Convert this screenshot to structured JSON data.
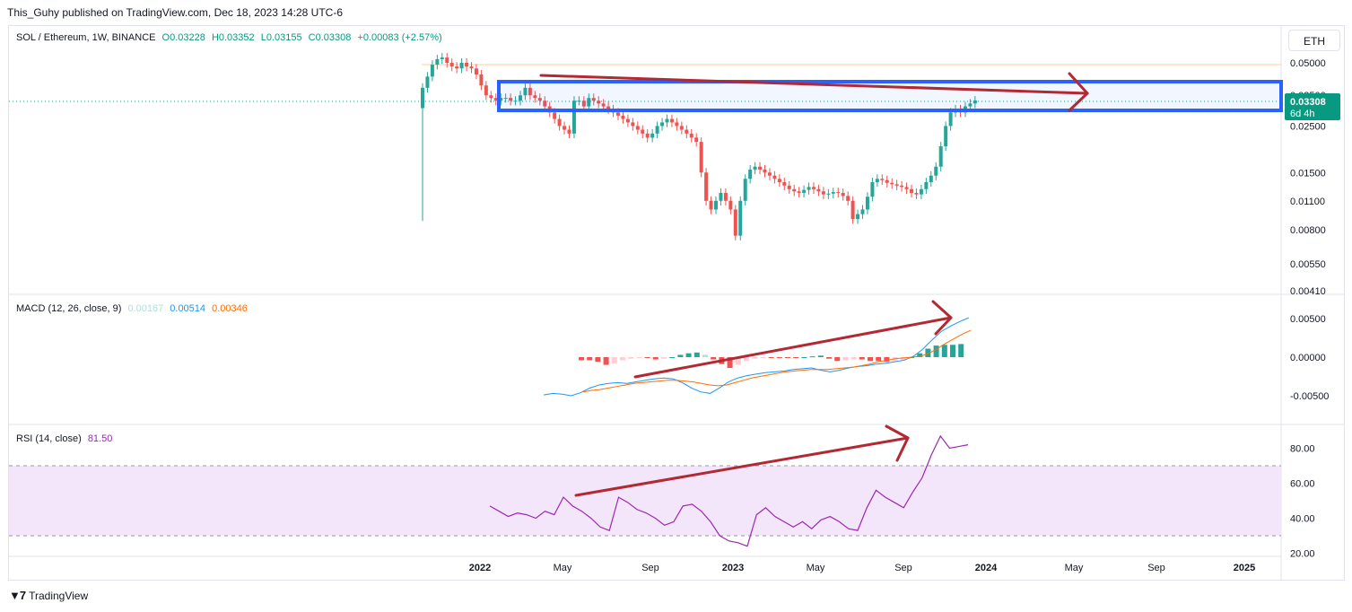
{
  "header": {
    "published": "This_Guhy published on TradingView.com, Dec 18, 2023 14:28 UTC-6"
  },
  "footer": {
    "brand": "TradingView"
  },
  "currency_button": "ETH",
  "price_legend": {
    "symbol": "SOL / Ethereum, 1W, BINANCE",
    "o": "O0.03228",
    "h": "H0.03352",
    "l": "L0.03155",
    "c": "C0.03308",
    "change": "+0.00083 (+2.57%)"
  },
  "price_badge": {
    "price": "0.03308",
    "countdown": "6d 4h"
  },
  "macd_legend": {
    "name": "MACD (12, 26, close, 9)",
    "hist": "0.00167",
    "macd": "0.00514",
    "signal": "0.00346"
  },
  "rsi_legend": {
    "name": "RSI (14, close)",
    "value": "81.50"
  },
  "colors": {
    "up": "#26a69a",
    "down": "#ef5350",
    "box": "#2962ff",
    "arrow": "#b22833",
    "macd": "#2196f3",
    "signal": "#ff6d00",
    "rsi": "#7e1f9b",
    "rsi_band": "#f4e6fa"
  },
  "chart_data": [
    {
      "type": "candlestick",
      "title": "SOL / Ethereum, 1W, BINANCE",
      "scale": "log",
      "y_ticks": [
        "0.05000",
        "0.03500",
        "0.02500",
        "0.01500",
        "0.01100",
        "0.00800",
        "0.00550",
        "0.00410"
      ],
      "x_ticks": [
        "2022",
        "May",
        "Sep",
        "2023",
        "May",
        "Sep",
        "2024",
        "May",
        "Sep",
        "2025"
      ],
      "last_price": 0.03308,
      "series_note": "weekly close (approx.)",
      "closes": [
        0.038,
        0.043,
        0.049,
        0.052,
        0.053,
        0.05,
        0.048,
        0.047,
        0.05,
        0.048,
        0.047,
        0.044,
        0.039,
        0.035,
        0.034,
        0.033,
        0.034,
        0.034,
        0.033,
        0.033,
        0.035,
        0.038,
        0.035,
        0.034,
        0.033,
        0.031,
        0.029,
        0.027,
        0.025,
        0.024,
        0.023,
        0.033,
        0.033,
        0.031,
        0.034,
        0.033,
        0.032,
        0.031,
        0.03,
        0.029,
        0.028,
        0.027,
        0.026,
        0.025,
        0.024,
        0.023,
        0.022,
        0.023,
        0.025,
        0.026,
        0.027,
        0.026,
        0.025,
        0.024,
        0.023,
        0.022,
        0.021,
        0.015,
        0.011,
        0.01,
        0.011,
        0.012,
        0.011,
        0.01,
        0.0075,
        0.011,
        0.014,
        0.0155,
        0.016,
        0.0155,
        0.015,
        0.0145,
        0.014,
        0.0135,
        0.013,
        0.0125,
        0.0122,
        0.012,
        0.0124,
        0.0128,
        0.0125,
        0.0122,
        0.0118,
        0.0119,
        0.0121,
        0.012,
        0.0116,
        0.011,
        0.009,
        0.0095,
        0.01,
        0.0115,
        0.0135,
        0.014,
        0.0138,
        0.0134,
        0.0132,
        0.013,
        0.0128,
        0.0125,
        0.012,
        0.0118,
        0.0125,
        0.0135,
        0.0145,
        0.016,
        0.02,
        0.025,
        0.029,
        0.03,
        0.029,
        0.031,
        0.032,
        0.0331
      ]
    },
    {
      "type": "line",
      "title": "MACD (12, 26, close, 9)",
      "y_ticks": [
        "0.00500",
        "0.00000",
        "-0.00500"
      ],
      "series": [
        {
          "name": "MACD",
          "values": [
            -0.0049,
            -0.0047,
            -0.0048,
            -0.005,
            -0.0046,
            -0.004,
            -0.0036,
            -0.0034,
            -0.0033,
            -0.0034,
            -0.0032,
            -0.003,
            -0.0028,
            -0.0027,
            -0.0028,
            -0.0033,
            -0.004,
            -0.0045,
            -0.0047,
            -0.004,
            -0.0032,
            -0.0027,
            -0.0024,
            -0.0022,
            -0.002,
            -0.0019,
            -0.0018,
            -0.0016,
            -0.0015,
            -0.0014,
            -0.0017,
            -0.0019,
            -0.0017,
            -0.0014,
            -0.0012,
            -0.0011,
            -0.0009,
            -0.0008,
            -0.0006,
            -0.0004,
            0.0001,
            0.001,
            0.0022,
            0.0033,
            0.004,
            0.0046,
            0.0051
          ]
        },
        {
          "name": "Signal",
          "values": [
            -0.0045,
            -0.0043,
            -0.0042,
            -0.004,
            -0.0038,
            -0.0036,
            -0.0034,
            -0.0033,
            -0.0032,
            -0.0031,
            -0.003,
            -0.003,
            -0.0031,
            -0.0032,
            -0.0034,
            -0.0036,
            -0.0037,
            -0.0036,
            -0.0033,
            -0.003,
            -0.0027,
            -0.0025,
            -0.0023,
            -0.0021,
            -0.0019,
            -0.0018,
            -0.0017,
            -0.0016,
            -0.0016,
            -0.0016,
            -0.0015,
            -0.0014,
            -0.0013,
            -0.0011,
            -0.0009,
            -0.0006,
            -0.0004,
            -0.0002,
            -0.0001,
            0.0,
            0.0001,
            0.0005,
            0.0011,
            0.0018,
            0.0024,
            0.003,
            0.0035
          ]
        },
        {
          "name": "Histogram",
          "values": [
            -0.0004,
            -0.0004,
            -0.0006,
            -0.001,
            -0.0008,
            -0.0004,
            -0.0002,
            -0.0001,
            -0.0001,
            -0.0003,
            -0.0002,
            0.0,
            0.0003,
            0.0005,
            0.0006,
            0.0003,
            -0.0003,
            -0.0009,
            -0.0014,
            -0.001,
            -0.0005,
            -0.0002,
            -0.0001,
            -0.0001,
            -0.0001,
            -0.0001,
            -0.0001,
            0.0,
            0.0001,
            0.0002,
            -0.0002,
            -0.0005,
            -0.0004,
            -0.0003,
            -0.0003,
            -0.0005,
            -0.0005,
            -0.0006,
            -0.0005,
            -0.0004,
            0.0,
            0.0005,
            0.0011,
            0.0015,
            0.0016,
            0.0016,
            0.0017
          ]
        }
      ]
    },
    {
      "type": "line",
      "title": "RSI (14, close)",
      "y_ticks": [
        "80.00",
        "60.00",
        "40.00",
        "20.00"
      ],
      "band": [
        30,
        70
      ],
      "series": [
        {
          "name": "RSI",
          "values": [
            47,
            44,
            41,
            43,
            42,
            40,
            44,
            42,
            52,
            47,
            44,
            40,
            35,
            33,
            52,
            49,
            45,
            43,
            40,
            36,
            38,
            47,
            48,
            44,
            38,
            30,
            27,
            26,
            24,
            42,
            46,
            41,
            38,
            35,
            38,
            34,
            39,
            41,
            38,
            34,
            33,
            46,
            56,
            52,
            49,
            46,
            55,
            63,
            76,
            87,
            80,
            81,
            82
          ]
        }
      ]
    }
  ],
  "annotations": {
    "box_range": [
      0.0288,
      0.0392
    ]
  }
}
